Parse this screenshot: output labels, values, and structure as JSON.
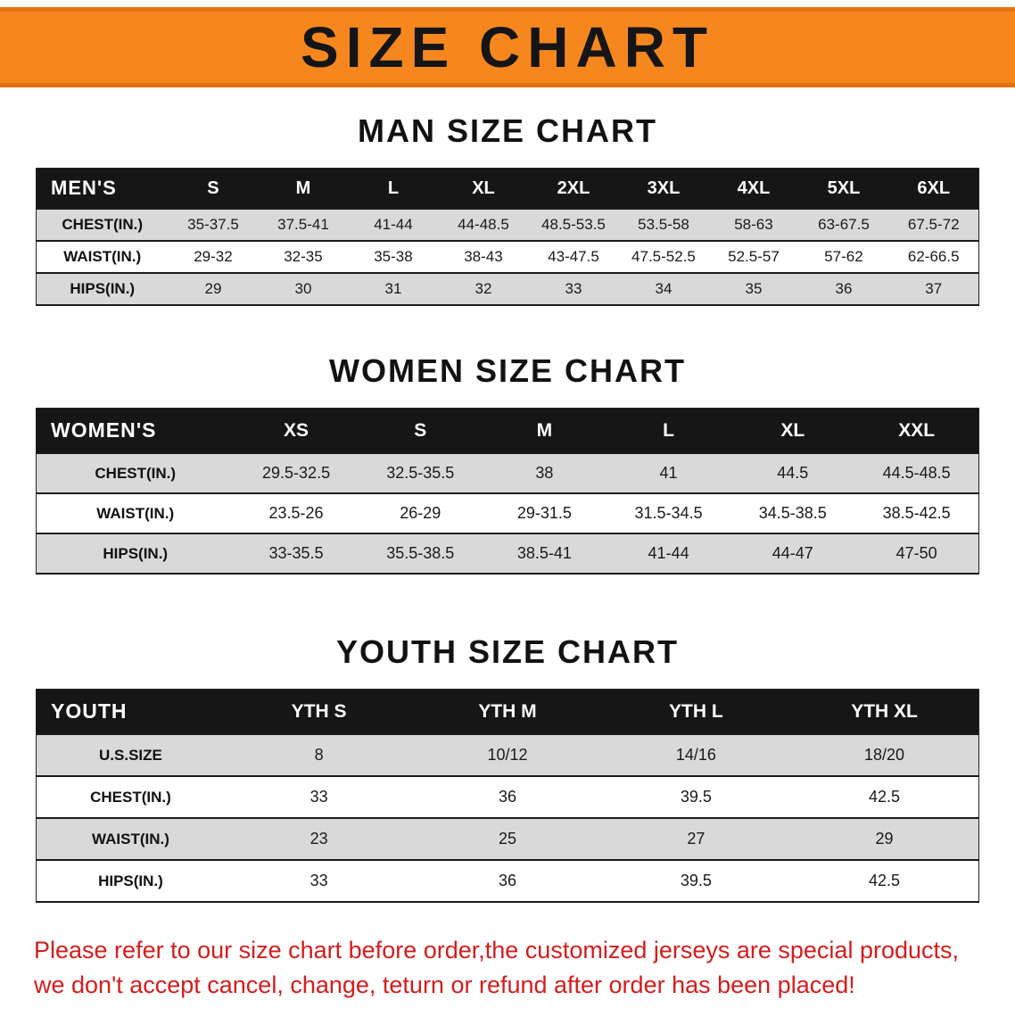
{
  "banner": {
    "title": "SIZE CHART"
  },
  "colors": {
    "banner_orange": "#f6871f",
    "header_black": "#161616",
    "row_gray": "#d9d9d9",
    "note_red": "#d41d1d"
  },
  "sections": [
    {
      "heading": "MAN SIZE CHART",
      "table": {
        "corner": "MEN'S",
        "columns": [
          "S",
          "M",
          "L",
          "XL",
          "2XL",
          "3XL",
          "4XL",
          "5XL",
          "6XL"
        ],
        "rows": [
          {
            "label": "CHEST(IN.)",
            "values": [
              "35-37.5",
              "37.5-41",
              "41-44",
              "44-48.5",
              "48.5-53.5",
              "53.5-58",
              "58-63",
              "63-67.5",
              "67.5-72"
            ]
          },
          {
            "label": "WAIST(IN.)",
            "values": [
              "29-32",
              "32-35",
              "35-38",
              "38-43",
              "43-47.5",
              "47.5-52.5",
              "52.5-57",
              "57-62",
              "62-66.5"
            ]
          },
          {
            "label": "HIPS(IN.)",
            "values": [
              "29",
              "30",
              "31",
              "32",
              "33",
              "34",
              "35",
              "36",
              "37"
            ]
          }
        ]
      }
    },
    {
      "heading": "WOMEN SIZE CHART",
      "table": {
        "corner": "WOMEN'S",
        "columns": [
          "XS",
          "S",
          "M",
          "L",
          "XL",
          "XXL"
        ],
        "rows": [
          {
            "label": "CHEST(IN.)",
            "values": [
              "29.5-32.5",
              "32.5-35.5",
              "38",
              "41",
              "44.5",
              "44.5-48.5"
            ]
          },
          {
            "label": "WAIST(IN.)",
            "values": [
              "23.5-26",
              "26-29",
              "29-31.5",
              "31.5-34.5",
              "34.5-38.5",
              "38.5-42.5"
            ]
          },
          {
            "label": "HIPS(IN.)",
            "values": [
              "33-35.5",
              "35.5-38.5",
              "38.5-41",
              "41-44",
              "44-47",
              "47-50"
            ]
          }
        ]
      }
    },
    {
      "heading": "YOUTH SIZE CHART",
      "table": {
        "corner": "YOUTH",
        "columns": [
          "YTH S",
          "YTH M",
          "YTH L",
          "YTH XL"
        ],
        "rows": [
          {
            "label": "U.S.SIZE",
            "values": [
              "8",
              "10/12",
              "14/16",
              "18/20"
            ]
          },
          {
            "label": "CHEST(IN.)",
            "values": [
              "33",
              "36",
              "39.5",
              "42.5"
            ]
          },
          {
            "label": "WAIST(IN.)",
            "values": [
              "23",
              "25",
              "27",
              "29"
            ]
          },
          {
            "label": "HIPS(IN.)",
            "values": [
              "33",
              "36",
              "39.5",
              "42.5"
            ]
          }
        ]
      }
    }
  ],
  "note": {
    "line1": "Please refer to our size chart before order,the customized jerseys are special products,",
    "line2": "we don't accept cancel, change, teturn or refund after order has been placed!"
  }
}
